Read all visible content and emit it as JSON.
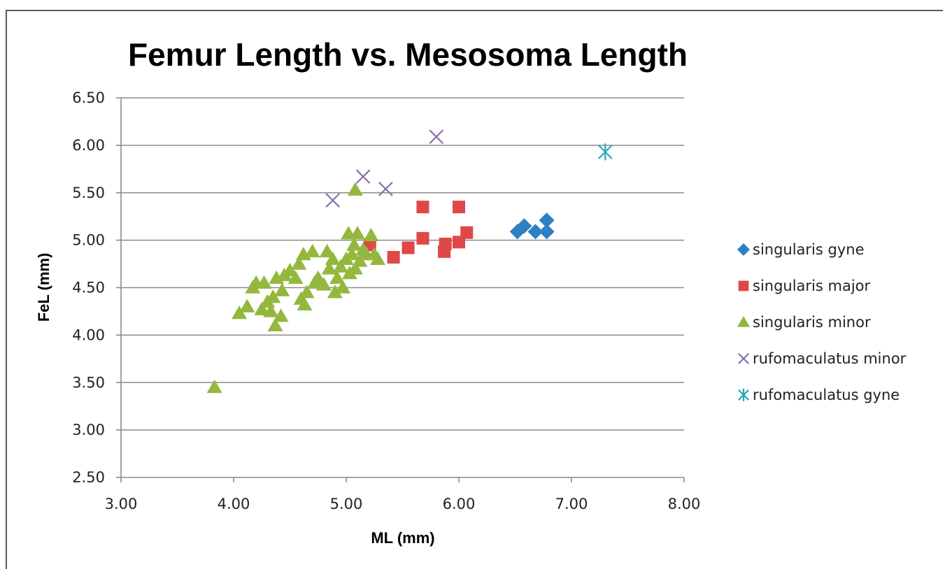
{
  "chart_data": {
    "type": "scatter",
    "title": "Femur Length vs. Mesosoma Length",
    "xlabel": "ML (mm)",
    "ylabel": "FeL (mm)",
    "xlim": [
      3.0,
      8.0
    ],
    "ylim": [
      2.5,
      6.5
    ],
    "x_ticks": [
      "3.00",
      "4.00",
      "5.00",
      "6.00",
      "7.00",
      "8.00"
    ],
    "y_ticks": [
      "2.50",
      "3.00",
      "3.50",
      "4.00",
      "4.50",
      "5.00",
      "5.50",
      "6.00",
      "6.50"
    ],
    "grid": "horizontal",
    "legend_position": "right",
    "series": [
      {
        "name": "singularis gyne",
        "marker": "diamond",
        "color": "#2e80c4",
        "points": [
          [
            6.52,
            5.09
          ],
          [
            6.58,
            5.15
          ],
          [
            6.68,
            5.09
          ],
          [
            6.78,
            5.09
          ],
          [
            6.78,
            5.21
          ]
        ]
      },
      {
        "name": "singularis major",
        "marker": "square",
        "color": "#e04848",
        "points": [
          [
            5.21,
            4.95
          ],
          [
            5.42,
            4.82
          ],
          [
            5.55,
            4.92
          ],
          [
            5.68,
            5.02
          ],
          [
            5.68,
            5.35
          ],
          [
            5.87,
            4.88
          ],
          [
            5.88,
            4.96
          ],
          [
            6.0,
            4.98
          ],
          [
            6.0,
            5.35
          ],
          [
            6.07,
            5.08
          ]
        ]
      },
      {
        "name": "singularis minor",
        "marker": "triangle",
        "color": "#94b83e",
        "points": [
          [
            3.83,
            3.45
          ],
          [
            4.05,
            4.23
          ],
          [
            4.12,
            4.3
          ],
          [
            4.17,
            4.5
          ],
          [
            4.2,
            4.55
          ],
          [
            4.25,
            4.27
          ],
          [
            4.27,
            4.55
          ],
          [
            4.3,
            4.35
          ],
          [
            4.33,
            4.25
          ],
          [
            4.35,
            4.4
          ],
          [
            4.37,
            4.1
          ],
          [
            4.38,
            4.6
          ],
          [
            4.42,
            4.2
          ],
          [
            4.43,
            4.47
          ],
          [
            4.45,
            4.63
          ],
          [
            4.5,
            4.68
          ],
          [
            4.55,
            4.6
          ],
          [
            4.58,
            4.75
          ],
          [
            4.6,
            4.38
          ],
          [
            4.62,
            4.85
          ],
          [
            4.63,
            4.32
          ],
          [
            4.65,
            4.45
          ],
          [
            4.7,
            4.88
          ],
          [
            4.72,
            4.55
          ],
          [
            4.75,
            4.6
          ],
          [
            4.8,
            4.53
          ],
          [
            4.83,
            4.88
          ],
          [
            4.85,
            4.7
          ],
          [
            4.88,
            4.8
          ],
          [
            4.9,
            4.45
          ],
          [
            4.92,
            4.6
          ],
          [
            4.95,
            4.72
          ],
          [
            4.97,
            4.5
          ],
          [
            5.0,
            4.8
          ],
          [
            5.02,
            5.07
          ],
          [
            5.03,
            4.65
          ],
          [
            5.05,
            4.85
          ],
          [
            5.07,
            4.95
          ],
          [
            5.08,
            4.7
          ],
          [
            5.1,
            5.07
          ],
          [
            5.12,
            4.78
          ],
          [
            5.15,
            4.9
          ],
          [
            5.18,
            4.85
          ],
          [
            5.22,
            5.05
          ],
          [
            5.25,
            4.85
          ],
          [
            5.28,
            4.8
          ],
          [
            5.08,
            5.53
          ]
        ]
      },
      {
        "name": "rufomaculatus minor",
        "marker": "x",
        "color": "#8a72a8",
        "points": [
          [
            4.88,
            5.42
          ],
          [
            5.15,
            5.67
          ],
          [
            5.35,
            5.54
          ],
          [
            5.8,
            6.09
          ]
        ]
      },
      {
        "name": "rufomaculatus gyne",
        "marker": "star",
        "color": "#2aa6b8",
        "points": [
          [
            7.3,
            5.93
          ]
        ]
      }
    ]
  }
}
